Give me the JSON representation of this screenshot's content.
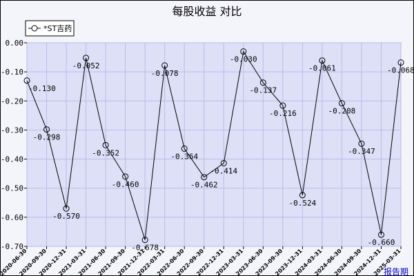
{
  "chart_data": {
    "type": "line",
    "title": "每股收益  对比",
    "x_unit_label": "报告期",
    "categories": [
      "2020-06-30",
      "2020-09-30",
      "2020-12-31",
      "2021-03-31",
      "2021-06-30",
      "2021-09-30",
      "2021-12-31",
      "2022-03-31",
      "2022-06-30",
      "2022-09-30",
      "2022-12-31",
      "2023-03-31",
      "2023-06-30",
      "2023-09-30",
      "2023-12-31",
      "2024-03-31",
      "2024-06-30",
      "2024-09-30",
      "2024-12-31",
      "2025-03-31"
    ],
    "series": [
      {
        "name": "*ST吉药",
        "values": [
          -0.13,
          -0.298,
          -0.57,
          -0.052,
          -0.352,
          -0.46,
          -0.678,
          -0.078,
          -0.364,
          -0.462,
          -0.414,
          -0.03,
          -0.137,
          -0.216,
          -0.524,
          -0.061,
          -0.208,
          -0.347,
          -0.66,
          -0.068
        ],
        "labels": [
          "-0.130",
          "-0.298",
          "-0.570",
          "-0.052",
          "-0.352",
          "-0.460",
          "-0.678",
          "-0.078",
          "-0.364",
          "-0.462",
          "-0.414",
          "-0.030",
          "-0.137",
          "-0.216",
          "-0.524",
          "-0.061",
          "-0.208",
          "-0.347",
          "-0.660",
          "-0.068"
        ],
        "color": "#000000"
      }
    ],
    "ylim": [
      -0.7,
      0.0
    ],
    "yticks": [
      "0.00",
      "-0.10",
      "-0.20",
      "-0.30",
      "-0.40",
      "-0.50",
      "-0.60",
      "-0.70"
    ],
    "grid": true,
    "legend": "top-left",
    "plot_bg": "#dde0f7",
    "grid_color": "#b8bde8"
  }
}
